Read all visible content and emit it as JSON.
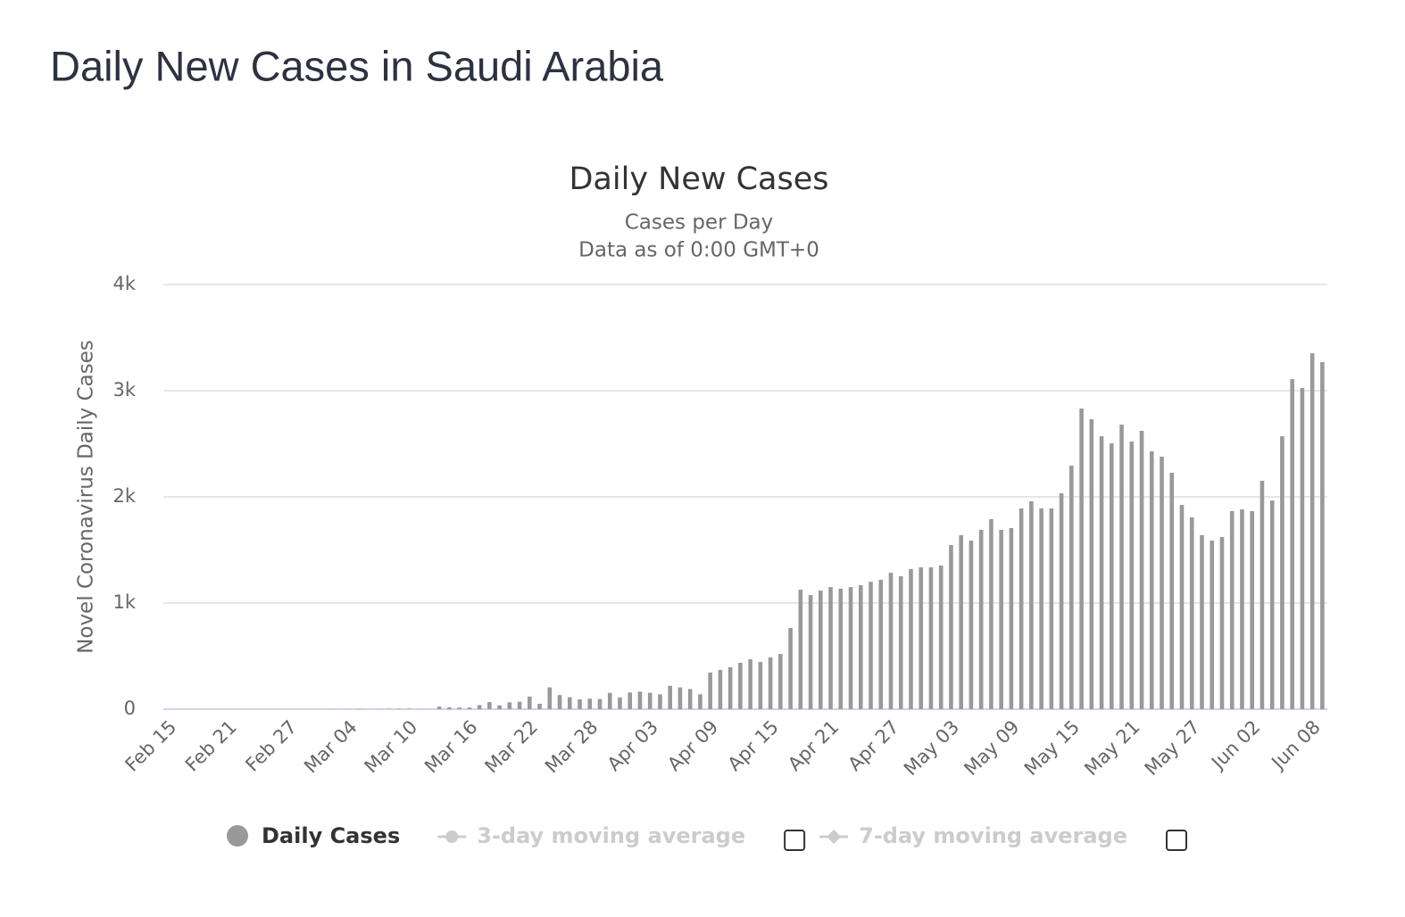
{
  "page_title": "Daily New Cases in Saudi Arabia",
  "chart_data": {
    "type": "bar",
    "title": "Daily New Cases",
    "subtitle": [
      "Cases per Day",
      "Data as of 0:00 GMT+0"
    ],
    "y_axis_label": "Novel Coronavirus Daily Cases",
    "categories": [
      "Feb 15",
      null,
      null,
      null,
      null,
      null,
      "Feb 21",
      null,
      null,
      null,
      null,
      null,
      "Feb 27",
      null,
      null,
      null,
      null,
      null,
      "Mar 04",
      null,
      null,
      null,
      null,
      null,
      "Mar 10",
      null,
      null,
      null,
      null,
      null,
      "Mar 16",
      null,
      null,
      null,
      null,
      null,
      "Mar 22",
      null,
      null,
      null,
      null,
      null,
      "Mar 28",
      null,
      null,
      null,
      null,
      null,
      "Apr 03",
      null,
      null,
      null,
      null,
      null,
      "Apr 09",
      null,
      null,
      null,
      null,
      null,
      "Apr 15",
      null,
      null,
      null,
      null,
      null,
      "Apr 21",
      null,
      null,
      null,
      null,
      null,
      "Apr 27",
      null,
      null,
      null,
      null,
      null,
      "May 03",
      null,
      null,
      null,
      null,
      null,
      "May 09",
      null,
      null,
      null,
      null,
      null,
      "May 15",
      null,
      null,
      null,
      null,
      null,
      "May 21",
      null,
      null,
      null,
      null,
      null,
      "May 27",
      null,
      null,
      null,
      null,
      null,
      "Jun 02",
      null,
      null,
      null,
      null,
      null,
      "Jun 08",
      null
    ],
    "series": [
      {
        "name": "Daily Cases",
        "color": "#999999",
        "values": [
          0,
          0,
          0,
          0,
          0,
          0,
          0,
          0,
          0,
          0,
          0,
          0,
          0,
          0,
          0,
          0,
          1,
          0,
          1,
          3,
          0,
          2,
          4,
          4,
          5,
          1,
          1,
          24,
          17,
          15,
          15,
          38,
          67,
          36,
          64,
          70,
          119,
          51,
          205,
          133,
          112,
          92,
          99,
          96,
          154,
          110,
          157,
          165,
          154,
          140,
          220,
          205,
          190,
          140,
          345,
          370,
          395,
          437,
          470,
          445,
          487,
          520,
          765,
          1125,
          1075,
          1117,
          1150,
          1135,
          1150,
          1168,
          1200,
          1218,
          1285,
          1252,
          1320,
          1336,
          1336,
          1353,
          1546,
          1639,
          1588,
          1689,
          1790,
          1689,
          1706,
          1891,
          1958,
          1891,
          1891,
          2034,
          2294,
          2832,
          2731,
          2571,
          2504,
          2681,
          2521,
          2622,
          2429,
          2378,
          2227,
          1924,
          1807,
          1639,
          1588,
          1622,
          1866,
          1882,
          1866,
          2151,
          1966,
          2571,
          3109,
          3025,
          3353,
          3269
        ]
      }
    ],
    "hidden_series": [
      {
        "name": "3-day moving average",
        "color": "#cccccc"
      },
      {
        "name": "7-day moving average",
        "color": "#cccccc"
      }
    ],
    "ylim": [
      0,
      4000
    ],
    "yticks": [
      0,
      {
        "value": 1000,
        "label": "1k"
      },
      {
        "value": 2000,
        "label": "2k"
      },
      {
        "value": 3000,
        "label": "3k"
      },
      {
        "value": 4000,
        "label": "4k"
      }
    ],
    "grid": true
  }
}
